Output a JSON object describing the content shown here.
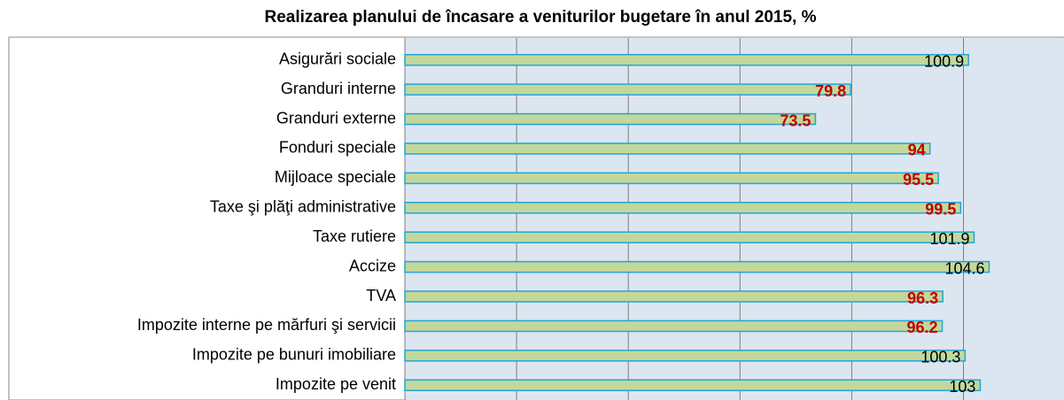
{
  "chart_data": {
    "type": "barh",
    "title": "Realizarea planului de încasare a veniturilor bugetare în anul 2015, %",
    "categories": [
      "Asigurări sociale",
      "Granduri interne",
      "Granduri externe",
      "Fonduri speciale",
      "Mijloace speciale",
      "Taxe şi plăţi administrative",
      "Taxe rutiere",
      "Accize",
      "TVA",
      "Impozite interne pe mărfuri şi servicii",
      "Impozite pe bunuri imobiliare",
      "Impozite pe venit"
    ],
    "values": [
      100.9,
      79.8,
      73.5,
      94,
      95.5,
      99.5,
      101.9,
      104.6,
      96.3,
      96.2,
      100.3,
      103
    ],
    "label_colors": [
      "#000000",
      "#c00000",
      "#c00000",
      "#c00000",
      "#c00000",
      "#c00000",
      "#000000",
      "#000000",
      "#c00000",
      "#c00000",
      "#000000",
      "#000000"
    ],
    "color": "#c4d79b",
    "edge_color": "#1fa6d8",
    "xlim": [
      0,
      118
    ],
    "xticks": [
      0,
      20,
      40,
      60,
      80,
      100
    ],
    "grid": true
  }
}
